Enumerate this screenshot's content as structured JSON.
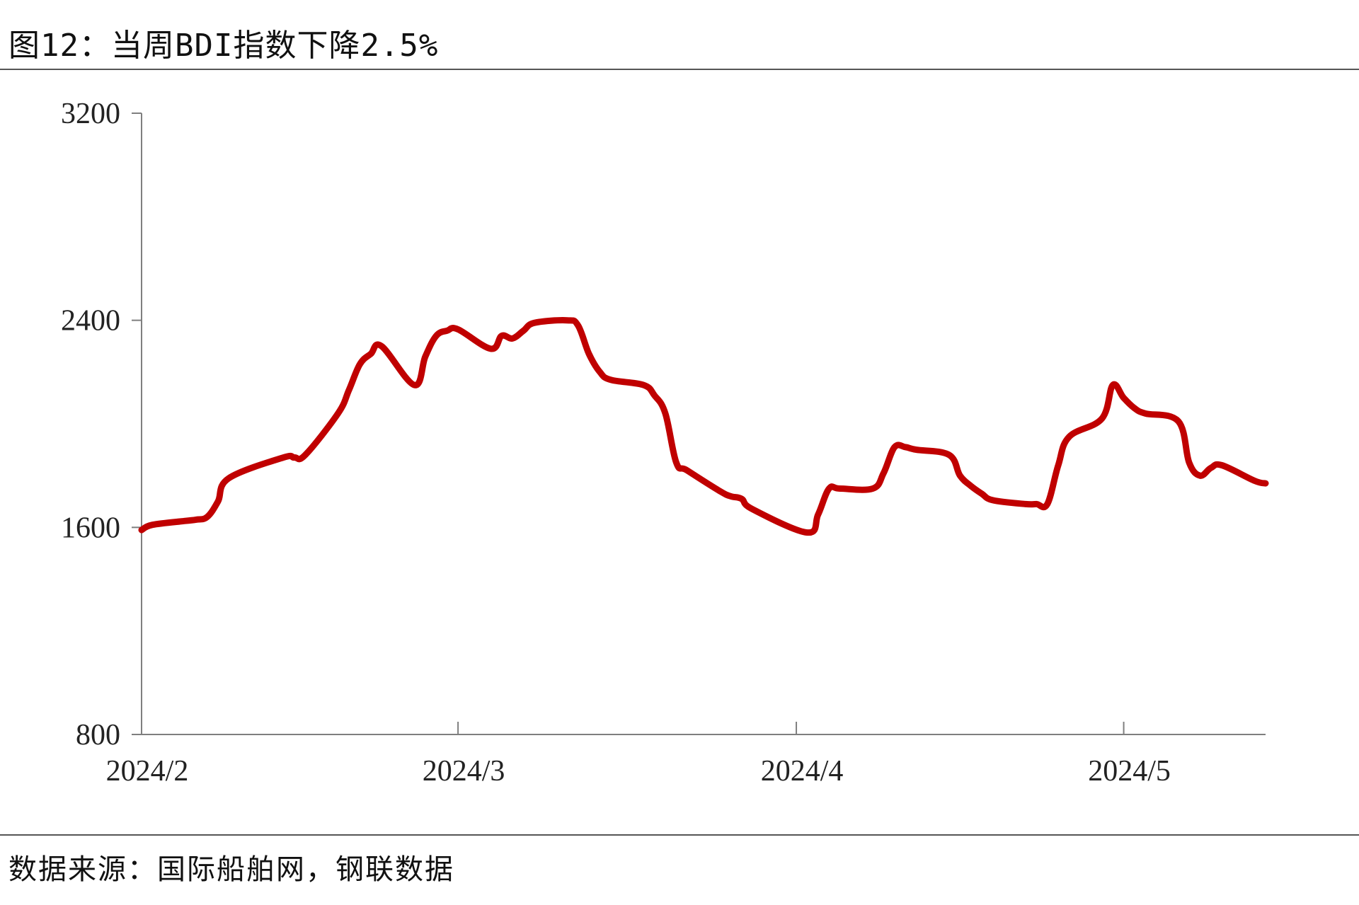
{
  "figure": {
    "title": "图12：当周BDI指数下降2.5%",
    "source": "数据来源：国际船舶网，钢联数据"
  },
  "colors": {
    "series": "#c00000",
    "axis": "#7f7f7f",
    "text": "#222222"
  },
  "chart_data": {
    "type": "line",
    "title": "",
    "xlabel": "",
    "ylabel": "",
    "ylim": [
      800,
      3200
    ],
    "yticks": [
      800,
      1600,
      2400,
      3200
    ],
    "xlim": [
      "2024-02-01",
      "2024-05-14"
    ],
    "xticks": [
      {
        "date": "2024-02-01",
        "label": "2024/2"
      },
      {
        "date": "2024-03-01",
        "label": "2024/3"
      },
      {
        "date": "2024-04-01",
        "label": "2024/4"
      },
      {
        "date": "2024-05-01",
        "label": "2024/5"
      }
    ],
    "grid": false,
    "legend": "none",
    "series": [
      {
        "name": "",
        "x": [
          "2024-02-01",
          "2024-02-02",
          "2024-02-05",
          "2024-02-06",
          "2024-02-07",
          "2024-02-08",
          "2024-02-09",
          "2024-02-14",
          "2024-02-15",
          "2024-02-16",
          "2024-02-19",
          "2024-02-20",
          "2024-02-21",
          "2024-02-22",
          "2024-02-23",
          "2024-02-26",
          "2024-02-27",
          "2024-02-28",
          "2024-02-29",
          "2024-03-01",
          "2024-03-04",
          "2024-03-05",
          "2024-03-06",
          "2024-03-07",
          "2024-03-08",
          "2024-03-11",
          "2024-03-12",
          "2024-03-13",
          "2024-03-14",
          "2024-03-15",
          "2024-03-18",
          "2024-03-19",
          "2024-03-20",
          "2024-03-21",
          "2024-03-22",
          "2024-03-25",
          "2024-03-26",
          "2024-03-27",
          "2024-03-28",
          "2024-04-02",
          "2024-04-03",
          "2024-04-04",
          "2024-04-05",
          "2024-04-08",
          "2024-04-09",
          "2024-04-10",
          "2024-04-11",
          "2024-04-12",
          "2024-04-15",
          "2024-04-16",
          "2024-04-17",
          "2024-04-18",
          "2024-04-19",
          "2024-04-22",
          "2024-04-23",
          "2024-04-24",
          "2024-04-25",
          "2024-04-26",
          "2024-04-29",
          "2024-04-30",
          "2024-05-01",
          "2024-05-02",
          "2024-05-03",
          "2024-05-06",
          "2024-05-07",
          "2024-05-08",
          "2024-05-09",
          "2024-05-10",
          "2024-05-13",
          "2024-05-14"
        ],
        "y": [
          1590,
          1610,
          1625,
          1630,
          1640,
          1700,
          1790,
          1870,
          1870,
          1880,
          2040,
          2130,
          2230,
          2270,
          2300,
          2150,
          2260,
          2340,
          2360,
          2365,
          2290,
          2340,
          2330,
          2360,
          2390,
          2400,
          2380,
          2270,
          2200,
          2170,
          2150,
          2110,
          2040,
          1850,
          1820,
          1740,
          1720,
          1710,
          1670,
          1580,
          1650,
          1750,
          1750,
          1750,
          1810,
          1910,
          1910,
          1900,
          1880,
          1800,
          1760,
          1730,
          1705,
          1690,
          1690,
          1690,
          1840,
          1950,
          2020,
          2150,
          2100,
          2060,
          2040,
          2010,
          1850,
          1800,
          1830,
          1840,
          1780,
          1770
        ]
      }
    ]
  }
}
